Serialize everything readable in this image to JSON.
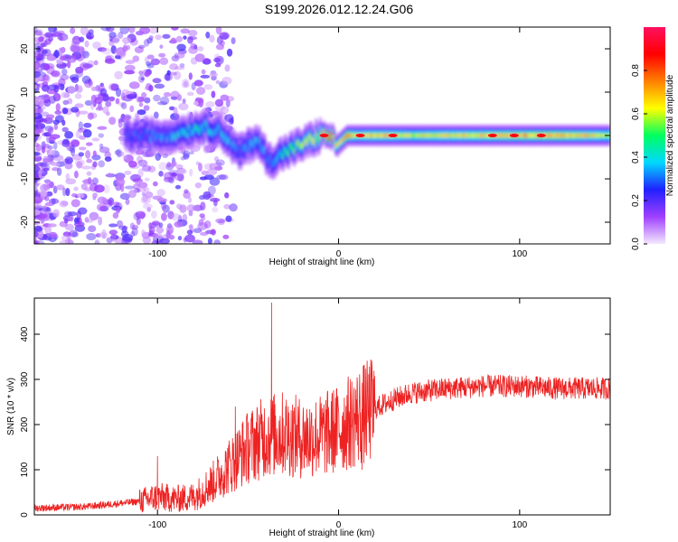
{
  "title": "S199.2026.012.12.24.G06",
  "chart_data": [
    {
      "type": "heatmap",
      "xlabel": "Height of straight line (km)",
      "ylabel": "Frequency (Hz)",
      "xlim": [
        -168,
        150
      ],
      "ylim": [
        -25,
        25
      ],
      "xticks": [
        -100,
        0,
        100
      ],
      "yticks": [
        -20,
        -10,
        0,
        10,
        20
      ],
      "colorbar": {
        "label": "Normalized spectral amplitude",
        "range": [
          0,
          1
        ],
        "ticks": [
          0.0,
          0.2,
          0.4,
          0.6,
          0.8
        ],
        "stops": [
          "#f4e8ff",
          "#a040ff",
          "#2020ff",
          "#00d8ff",
          "#00ff60",
          "#ffff00",
          "#ff8000",
          "#ff0000",
          "#ff1060"
        ]
      },
      "ridge": {
        "x": [
          -118,
          -105,
          -95,
          -85,
          -75,
          -65,
          -55,
          -45,
          -38,
          -30,
          -20,
          -10,
          -5,
          0,
          5,
          10,
          20,
          40,
          80,
          120,
          150
        ],
        "freq": [
          0,
          0,
          0,
          1,
          2,
          1,
          -4,
          -1,
          -6,
          -4,
          -2,
          0,
          0,
          -2,
          0,
          0,
          0,
          0,
          0,
          0,
          0
        ],
        "amplitude": [
          0.25,
          0.3,
          0.3,
          0.4,
          0.4,
          0.35,
          0.3,
          0.35,
          0.3,
          0.45,
          0.55,
          0.6,
          0.85,
          0.6,
          0.75,
          0.6,
          0.65,
          0.6,
          0.65,
          0.7,
          0.6
        ]
      }
    },
    {
      "type": "line",
      "xlabel": "Height of straight line (km)",
      "ylabel": "SNR (10 * v/v)",
      "xlim": [
        -168,
        150
      ],
      "ylim": [
        0,
        480
      ],
      "xticks": [
        -100,
        0,
        100
      ],
      "yticks": [
        0,
        100,
        200,
        300,
        400
      ],
      "color": "#ee2222",
      "trend": {
        "x": [
          -168,
          -140,
          -110,
          -100,
          -90,
          -80,
          -70,
          -60,
          -50,
          -40,
          -30,
          -20,
          -10,
          0,
          10,
          20,
          30,
          40,
          60,
          80,
          100,
          120,
          150
        ],
        "snr": [
          15,
          18,
          30,
          40,
          35,
          40,
          70,
          110,
          150,
          175,
          180,
          170,
          175,
          190,
          215,
          235,
          255,
          270,
          280,
          285,
          285,
          280,
          280
        ]
      },
      "peaks": [
        {
          "x": -100,
          "snr": 130
        },
        {
          "x": -57,
          "snr": 240
        },
        {
          "x": -37,
          "snr": 470
        },
        {
          "x": 13,
          "snr": 100
        }
      ]
    }
  ]
}
